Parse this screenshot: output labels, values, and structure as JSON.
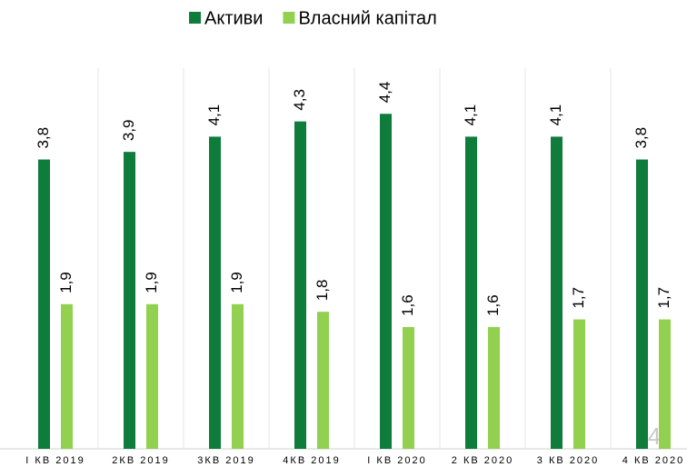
{
  "chart_data": {
    "type": "bar",
    "categories": [
      "I КВ 2019",
      "2КВ 2019",
      "3КВ 2019",
      "4КВ 2019",
      "I КВ 2020",
      "2 КВ 2020",
      "3 КВ 2020",
      "4 КВ 2020"
    ],
    "series": [
      {
        "name": "Активи",
        "color": "#0e7c3a",
        "values": [
          3.8,
          3.9,
          4.1,
          4.3,
          4.4,
          4.1,
          4.1,
          3.8
        ],
        "value_labels": [
          "3,8",
          "3,9",
          "4,1",
          "4,3",
          "4,4",
          "4,1",
          "4,1",
          "3,8"
        ]
      },
      {
        "name": "Власний капітал",
        "color": "#92d050",
        "values": [
          1.9,
          1.9,
          1.9,
          1.8,
          1.6,
          1.6,
          1.7,
          1.7
        ],
        "value_labels": [
          "1,9",
          "1,9",
          "1,9",
          "1,8",
          "1,6",
          "1,6",
          "1,7",
          "1,7"
        ]
      }
    ],
    "ylim": [
      0,
      5
    ],
    "legend": "top",
    "annotation": "4"
  }
}
